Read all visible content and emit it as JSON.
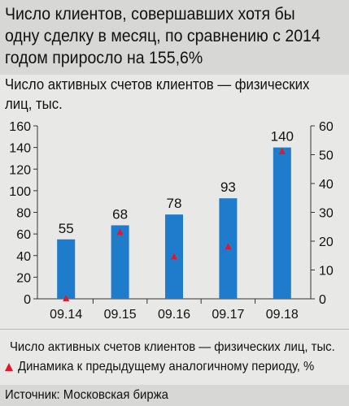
{
  "headline": "Число клиентов, совершавших хотя бы одну сделку в месяц, по сравнению с 2014 годом приросло на 155,6%",
  "chart_data": {
    "type": "bar",
    "subtitle": "Число активных счетов клиентов — физических лиц, тыс.",
    "categories": [
      "09.14",
      "09.15",
      "09.16",
      "09.17",
      "09.18"
    ],
    "series": [
      {
        "name": "Число активных счетов клиентов — физических лиц, тыс.",
        "type": "bar",
        "axis": "left",
        "values": [
          55,
          68,
          78,
          93,
          140
        ],
        "data_labels": [
          "55",
          "68",
          "78",
          "93",
          "140"
        ],
        "color": "#1f7ccc"
      },
      {
        "name": "Динамика к предыдущему аналогичному периоду, %",
        "type": "scatter",
        "axis": "right",
        "marker": "triangle",
        "values": [
          0,
          23,
          14.5,
          18,
          51
        ],
        "color": "#e8162a"
      }
    ],
    "y_left": {
      "ylim": [
        0,
        160
      ],
      "ticks": [
        "0",
        "20",
        "40",
        "60",
        "80",
        "100",
        "120",
        "140",
        "160"
      ]
    },
    "y_right": {
      "ylim": [
        0,
        60
      ],
      "ticks": [
        "0",
        "10",
        "20",
        "30",
        "40",
        "50",
        "60"
      ]
    },
    "grid": false,
    "legend_position": "bottom"
  },
  "source": "Источник: Московская биржа",
  "colors": {
    "bar": "#1f7ccc",
    "marker": "#e8162a",
    "panel": "#d7d7d5",
    "background": "#e8e8e6"
  }
}
